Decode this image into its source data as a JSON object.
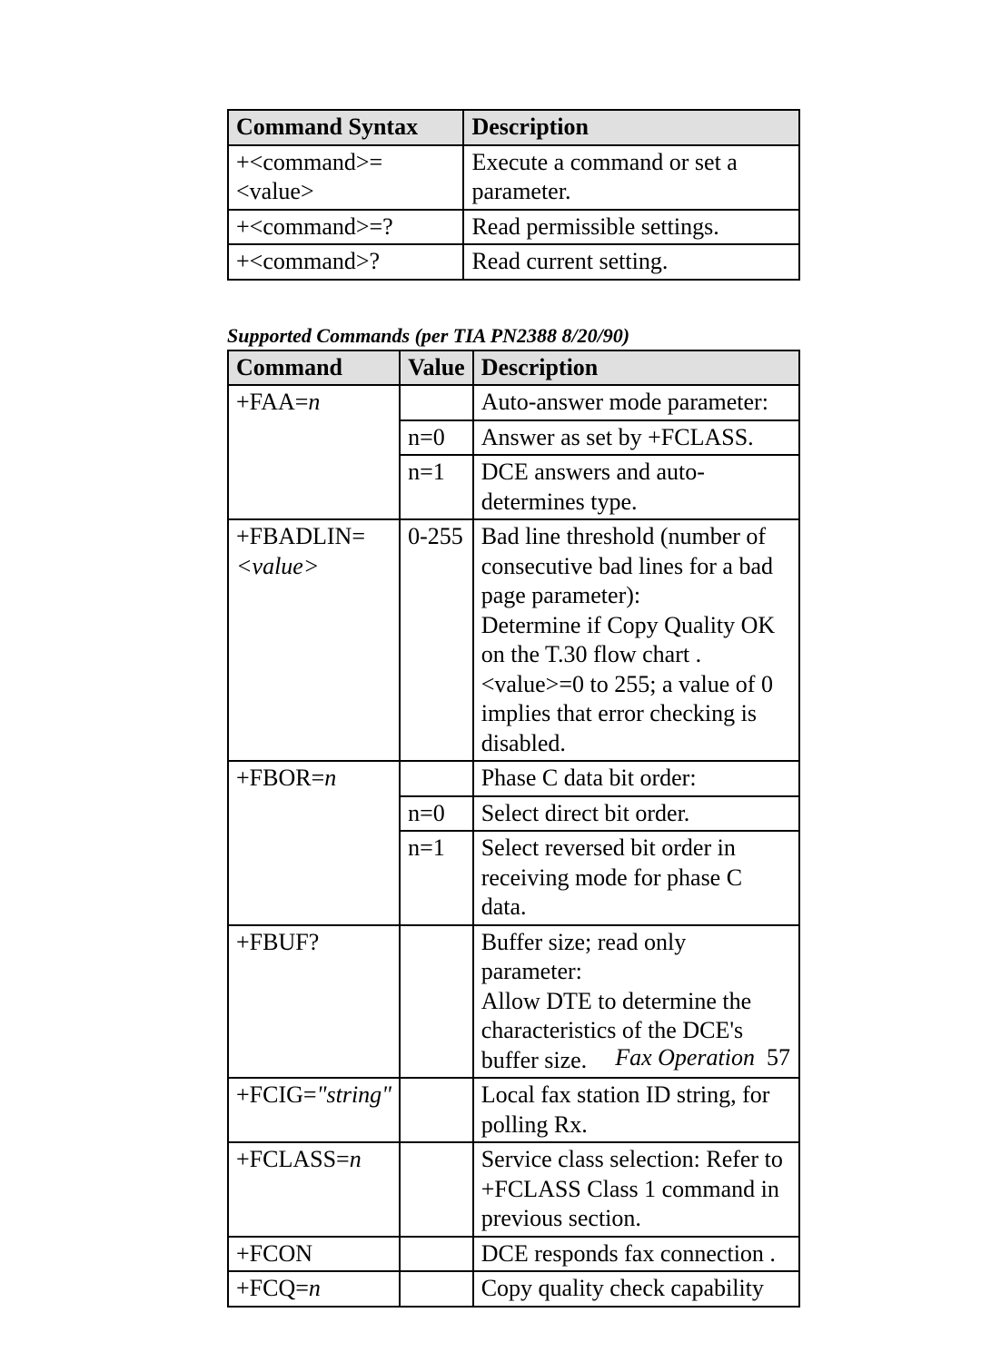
{
  "table1": {
    "headers": {
      "col1": "Command Syntax",
      "col2": "Description"
    },
    "rows": [
      {
        "syntax": "+<command>=<value>",
        "desc": "Execute a command or set a parameter."
      },
      {
        "syntax": "+<command>=?",
        "desc": "Read permissible settings."
      },
      {
        "syntax": "+<command>?",
        "desc": "Read current setting."
      }
    ]
  },
  "caption2": "Supported Commands (per TIA PN2388 8/20/90)",
  "table2": {
    "headers": {
      "col1": "Command",
      "col2": "Value",
      "col3": "Description"
    },
    "rows": [
      {
        "cmd_plain": "+FAA=",
        "cmd_ital": "n",
        "value": "",
        "desc": "Auto-answer mode parameter:"
      },
      {
        "cmd_plain": "",
        "cmd_ital": "",
        "value": "n=0",
        "desc": "Answer as set by +FCLASS."
      },
      {
        "cmd_plain": "",
        "cmd_ital": "",
        "value": "n=1",
        "desc": "DCE answers and auto-determines type."
      },
      {
        "cmd_plain": "+FBADLIN= ",
        "cmd_ital": "<value>",
        "value": "0-255",
        "desc": "Bad line threshold (number of consecutive bad lines for a bad page parameter):\nDetermine if Copy Quality OK on the T.30 flow chart . <value>=0 to 255; a value of 0 implies that error checking is disabled."
      },
      {
        "cmd_plain": "+FBOR=",
        "cmd_ital": "n",
        "value": "",
        "desc": "Phase C data bit order:"
      },
      {
        "cmd_plain": "",
        "cmd_ital": "",
        "value": "n=0",
        "desc": "Select direct bit order."
      },
      {
        "cmd_plain": "",
        "cmd_ital": "",
        "value": "n=1",
        "desc": "Select reversed bit order in receiving mode for phase C data."
      },
      {
        "cmd_plain": "+FBUF?",
        "cmd_ital": "",
        "value": "",
        "desc": "Buffer size; read only parameter:\nAllow DTE to determine the characteristics of the DCE's buffer size."
      },
      {
        "cmd_plain": "+FCIG=",
        "cmd_ital": "\"string\"",
        "value": "",
        "desc": "Local fax station ID string, for polling Rx."
      },
      {
        "cmd_plain": "+FCLASS=",
        "cmd_ital": "n",
        "value": "",
        "desc": "Service class selection: Refer to +FCLASS Class 1 command in previous section."
      },
      {
        "cmd_plain": "+FCON",
        "cmd_ital": "",
        "value": "",
        "desc": "DCE responds fax connection ."
      },
      {
        "cmd_plain": "+FCQ=",
        "cmd_ital": "n",
        "value": "",
        "desc": "Copy quality check capability"
      }
    ]
  },
  "footer": {
    "label": "Fax Operation",
    "page": "57"
  }
}
